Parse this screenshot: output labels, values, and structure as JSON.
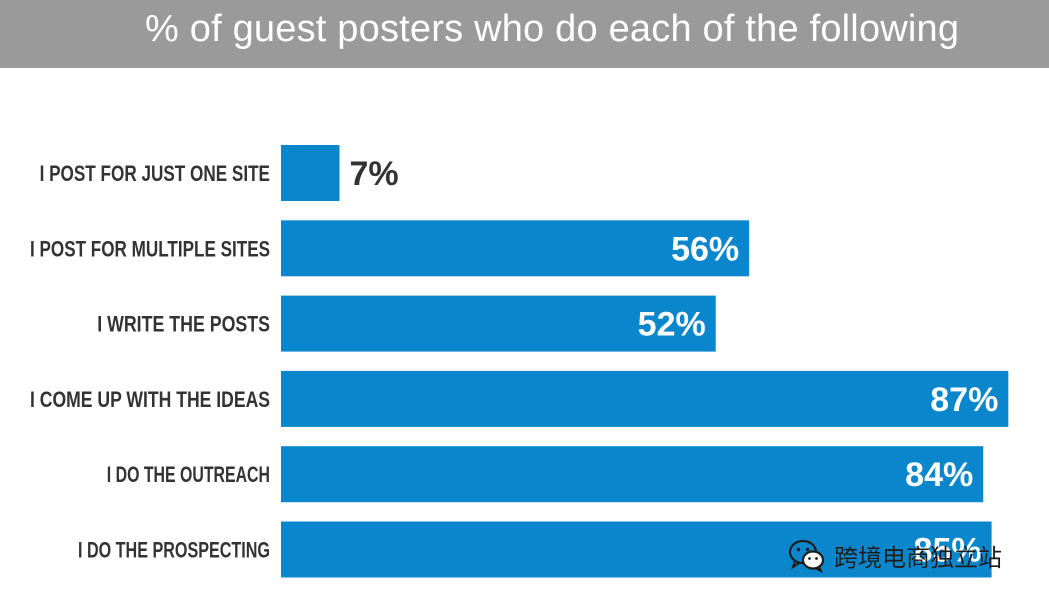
{
  "chart_data": {
    "type": "bar",
    "orientation": "horizontal",
    "title": "% of guest posters who do each of the following",
    "categories": [
      "I POST FOR JUST ONE SITE",
      "I POST FOR MULTIPLE SITES",
      "I WRITE THE  POSTS",
      "I COME UP WITH THE  IDEAS",
      "I DO THE OUTREACH",
      "I DO THE PROSPECTING"
    ],
    "values": [
      7,
      56,
      52,
      87,
      84,
      85
    ],
    "value_labels": [
      "7%",
      "56%",
      "52%",
      "87%",
      "84%",
      "85%"
    ],
    "xlim": [
      0,
      100
    ],
    "grid": false,
    "legend": "none",
    "colors": {
      "bar": "#0a87cc",
      "title_bar": "#9a9a9a",
      "label_outside": "#333333",
      "label_inside": "#ffffff"
    }
  },
  "watermark": {
    "text": "跨境电商独立站",
    "icon": "wechat-icon"
  }
}
